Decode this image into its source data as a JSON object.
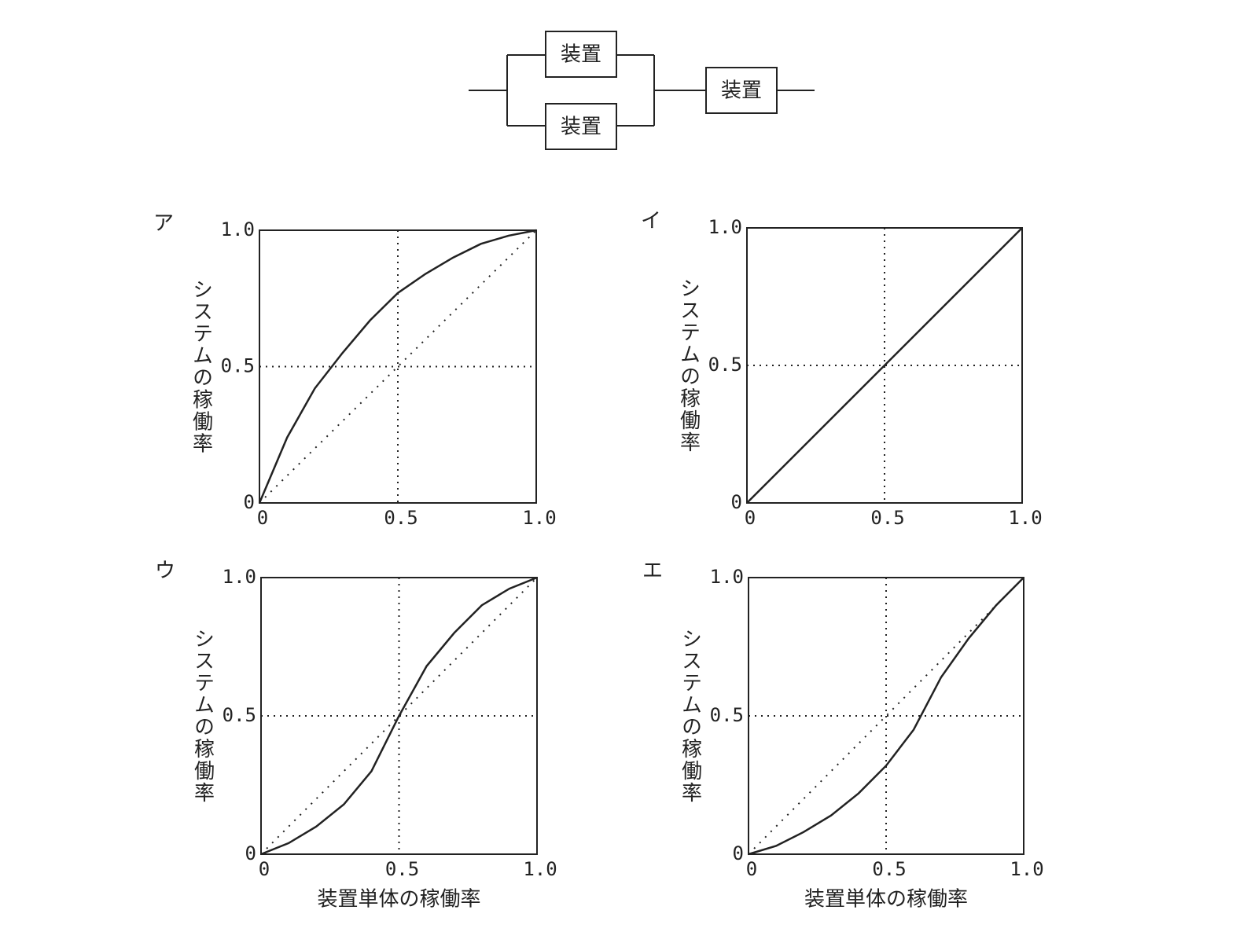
{
  "diagram": {
    "nodes": [
      {
        "label": "装置"
      },
      {
        "label": "装置"
      },
      {
        "label": "装置"
      }
    ]
  },
  "chart_data": [
    {
      "type": "line",
      "title": "ア",
      "ylabel": "システムの稼働率",
      "x": [
        0,
        0.1,
        0.2,
        0.3,
        0.4,
        0.5,
        0.6,
        0.7,
        0.8,
        0.9,
        1
      ],
      "series": [
        {
          "color": "#222222",
          "dash": "solid",
          "values": [
            0,
            0.24,
            0.42,
            0.55,
            0.67,
            0.77,
            0.84,
            0.9,
            0.95,
            0.98,
            1
          ]
        },
        {
          "color": "#222222",
          "dash": "dotted",
          "values": [
            0,
            0.1,
            0.2,
            0.3,
            0.4,
            0.5,
            0.6,
            0.7,
            0.8,
            0.9,
            1
          ]
        }
      ],
      "xlim": [
        0,
        1
      ],
      "ylim": [
        0,
        1
      ],
      "xticks": [
        0,
        0.5,
        {
          "value": 1,
          "label": "1.0"
        }
      ],
      "yticks": [
        0,
        0.5,
        {
          "value": 1,
          "label": "1.0"
        }
      ],
      "grid": true
    },
    {
      "type": "line",
      "title": "イ",
      "ylabel": "システムの稼働率",
      "x": [
        0,
        0.1,
        0.2,
        0.3,
        0.4,
        0.5,
        0.6,
        0.7,
        0.8,
        0.9,
        1
      ],
      "series": [
        {
          "color": "#222222",
          "dash": "solid",
          "values": [
            0,
            0.1,
            0.2,
            0.3,
            0.4,
            0.5,
            0.6,
            0.7,
            0.8,
            0.9,
            1
          ]
        }
      ],
      "xlim": [
        0,
        1
      ],
      "ylim": [
        0,
        1
      ],
      "xticks": [
        0,
        0.5,
        {
          "value": 1,
          "label": "1.0"
        }
      ],
      "yticks": [
        0,
        0.5,
        {
          "value": 1,
          "label": "1.0"
        }
      ],
      "grid": true
    },
    {
      "type": "line",
      "title": "ウ",
      "ylabel": "システムの稼働率",
      "xlabel": "装置単体の稼働率",
      "x": [
        0,
        0.1,
        0.2,
        0.3,
        0.4,
        0.5,
        0.6,
        0.7,
        0.8,
        0.9,
        1
      ],
      "series": [
        {
          "color": "#222222",
          "dash": "solid",
          "values": [
            0,
            0.04,
            0.1,
            0.18,
            0.3,
            0.5,
            0.68,
            0.8,
            0.9,
            0.96,
            1
          ]
        },
        {
          "color": "#222222",
          "dash": "dotted",
          "values": [
            0,
            0.1,
            0.2,
            0.3,
            0.4,
            0.5,
            0.6,
            0.7,
            0.8,
            0.9,
            1
          ]
        }
      ],
      "xlim": [
        0,
        1
      ],
      "ylim": [
        0,
        1
      ],
      "xticks": [
        0,
        0.5,
        {
          "value": 1,
          "label": "1.0"
        }
      ],
      "yticks": [
        0,
        0.5,
        {
          "value": 1,
          "label": "1.0"
        }
      ],
      "grid": true
    },
    {
      "type": "line",
      "title": "エ",
      "ylabel": "システムの稼働率",
      "xlabel": "装置単体の稼働率",
      "x": [
        0,
        0.1,
        0.2,
        0.3,
        0.4,
        0.5,
        0.6,
        0.7,
        0.8,
        0.9,
        1
      ],
      "series": [
        {
          "color": "#222222",
          "dash": "solid",
          "values": [
            0,
            0.03,
            0.08,
            0.14,
            0.22,
            0.32,
            0.45,
            0.64,
            0.78,
            0.9,
            1
          ]
        },
        {
          "color": "#222222",
          "dash": "dotted",
          "values": [
            0,
            0.1,
            0.2,
            0.3,
            0.4,
            0.5,
            0.6,
            0.7,
            0.8,
            0.9,
            1
          ]
        }
      ],
      "xlim": [
        0,
        1
      ],
      "ylim": [
        0,
        1
      ],
      "xticks": [
        0,
        0.5,
        {
          "value": 1,
          "label": "1.0"
        }
      ],
      "yticks": [
        0,
        0.5,
        {
          "value": 1,
          "label": "1.0"
        }
      ],
      "grid": true
    }
  ]
}
